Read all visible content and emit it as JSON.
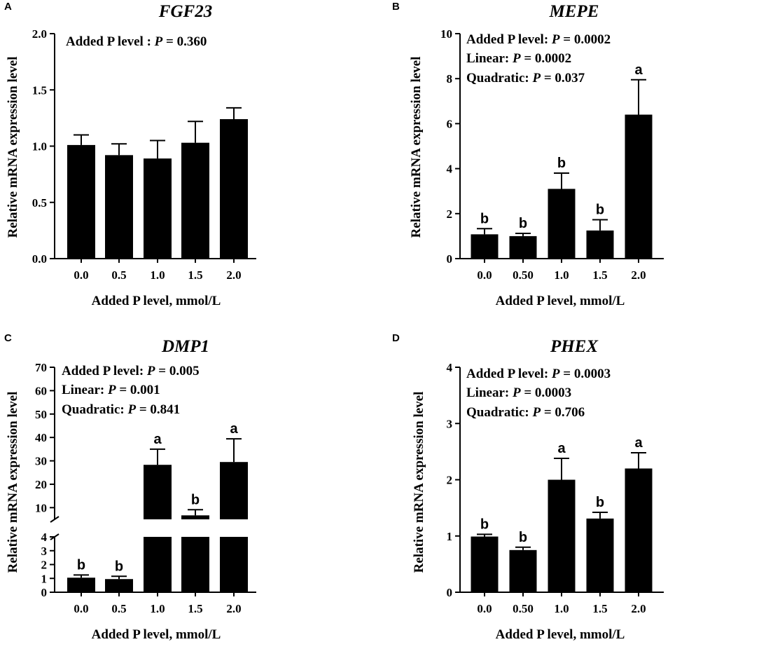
{
  "chart_data": [
    {
      "panel": "A",
      "type": "bar",
      "title": "FGF23",
      "xlabel": "Added P level, mmol/L",
      "ylabel": "Relative mRNA expression level",
      "categories": [
        "0.0",
        "0.5",
        "1.0",
        "1.5",
        "2.0"
      ],
      "values": [
        1.01,
        0.92,
        0.89,
        1.03,
        1.24
      ],
      "errors": [
        0.09,
        0.1,
        0.16,
        0.19,
        0.1
      ],
      "letters": [
        "",
        "",
        "",
        "",
        ""
      ],
      "ylim": [
        0,
        2
      ],
      "yticks": [
        "0.0",
        "0.5",
        "1.0",
        "1.5",
        "2.0"
      ],
      "annotations": [
        {
          "label": "Added P level : ",
          "italic": "P",
          "value": " = 0.360"
        }
      ]
    },
    {
      "panel": "B",
      "type": "bar",
      "title": "MEPE",
      "xlabel": "Added P level, mmol/L",
      "ylabel": "Relative mRNA expression level",
      "categories": [
        "0.0",
        "0.50",
        "1.0",
        "1.5",
        "2.0"
      ],
      "values": [
        1.08,
        1.0,
        3.1,
        1.25,
        6.4
      ],
      "errors": [
        0.25,
        0.12,
        0.7,
        0.48,
        1.55
      ],
      "letters": [
        "b",
        "b",
        "b",
        "b",
        "a"
      ],
      "ylim": [
        0,
        10
      ],
      "yticks": [
        "0",
        "2",
        "4",
        "6",
        "8",
        "10"
      ],
      "annotations": [
        {
          "label": "Added P level: ",
          "italic": "P",
          "value": " = 0.0002"
        },
        {
          "label": "Linear: ",
          "italic": "P",
          "value": " = 0.0002"
        },
        {
          "label": "Quadratic: ",
          "italic": "P",
          "value": " = 0.037"
        }
      ]
    },
    {
      "panel": "C",
      "type": "bar",
      "title": "DMP1",
      "xlabel": "Added P level, mmol/L",
      "ylabel": "Relative mRNA expression level",
      "categories": [
        "0.0",
        "0.5",
        "1.0",
        "1.5",
        "2.0"
      ],
      "values": [
        1.05,
        0.95,
        28.3,
        6.7,
        29.5
      ],
      "errors": [
        0.2,
        0.2,
        6.7,
        2.4,
        9.9
      ],
      "letters": [
        "b",
        "b",
        "a",
        "b",
        "a"
      ],
      "axis_break": {
        "lower": [
          0,
          4
        ],
        "upper": [
          5,
          70
        ]
      },
      "yticks_lower": [
        "0",
        "1",
        "2",
        "3",
        "4"
      ],
      "yticks_upper": [
        "10",
        "20",
        "30",
        "40",
        "50",
        "60",
        "70"
      ],
      "annotations": [
        {
          "label": "Added P level: ",
          "italic": "P",
          "value": " = 0.005"
        },
        {
          "label": "Linear: ",
          "italic": "P",
          "value": " = 0.001"
        },
        {
          "label": "Quadratic: ",
          "italic": "P",
          "value": " = 0.841"
        }
      ]
    },
    {
      "panel": "D",
      "type": "bar",
      "title": "PHEX",
      "xlabel": "Added P level, mmol/L",
      "ylabel": "Relative mRNA expression level",
      "categories": [
        "0.0",
        "0.50",
        "1.0",
        "1.5",
        "2.0"
      ],
      "values": [
        0.99,
        0.75,
        2.0,
        1.31,
        2.2
      ],
      "errors": [
        0.04,
        0.05,
        0.38,
        0.11,
        0.28
      ],
      "letters": [
        "b",
        "b",
        "a",
        "b",
        "a"
      ],
      "ylim": [
        0,
        4
      ],
      "yticks": [
        "0",
        "1",
        "2",
        "3",
        "4"
      ],
      "annotations": [
        {
          "label": "Added P level: ",
          "italic": "P",
          "value": " = 0.0003"
        },
        {
          "label": "Linear: ",
          "italic": "P",
          "value": " = 0.0003"
        },
        {
          "label": "Quadratic: ",
          "italic": "P",
          "value": " = 0.706"
        }
      ]
    }
  ]
}
